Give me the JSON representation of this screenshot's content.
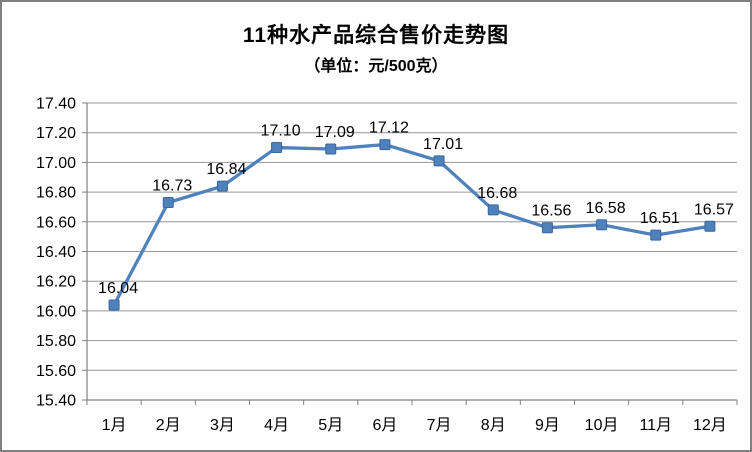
{
  "title": "11种水产品综合售价走势图",
  "subtitle": "（单位：元/500克）",
  "chart_data": {
    "type": "line",
    "title": "11种水产品综合售价走势图",
    "subtitle": "（单位：元/500克）",
    "categories": [
      "1月",
      "2月",
      "3月",
      "4月",
      "5月",
      "6月",
      "7月",
      "8月",
      "9月",
      "10月",
      "11月",
      "12月"
    ],
    "values": [
      16.04,
      16.73,
      16.84,
      17.1,
      17.09,
      17.12,
      17.01,
      16.68,
      16.56,
      16.58,
      16.51,
      16.57
    ],
    "data_labels": [
      "16.04",
      "16.73",
      "16.84",
      "17.10",
      "17.09",
      "17.12",
      "17.01",
      "16.68",
      "16.56",
      "16.58",
      "16.51",
      "16.57"
    ],
    "ylim": [
      15.4,
      17.4
    ],
    "y_tick_step": 0.2,
    "y_ticks": [
      "15.40",
      "15.60",
      "15.80",
      "16.00",
      "16.20",
      "16.40",
      "16.60",
      "16.80",
      "17.00",
      "17.20",
      "17.40"
    ],
    "grid": true,
    "legend": "none",
    "marker": "square",
    "colors": {
      "line": "#4F81BD",
      "marker_fill": "#4F81BD",
      "marker_border": "#3A679C",
      "gridline": "#969696",
      "axis": "#808080",
      "text": "#000000"
    }
  }
}
